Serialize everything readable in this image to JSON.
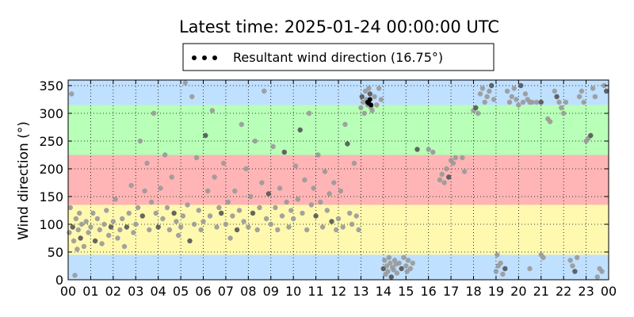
{
  "chart_data": {
    "type": "scatter",
    "title": "Latest time: 2025-01-24 00:00:00 UTC",
    "xlabel": "",
    "ylabel": "Wind direction (°)",
    "x_range_hours": [
      0,
      24
    ],
    "x_tick_labels": [
      "00",
      "01",
      "02",
      "03",
      "04",
      "05",
      "06",
      "07",
      "08",
      "09",
      "10",
      "11",
      "12",
      "13",
      "14",
      "15",
      "16",
      "17",
      "18",
      "19",
      "20",
      "21",
      "22",
      "23",
      "00"
    ],
    "ylim": [
      0,
      360
    ],
    "y_ticks": [
      0,
      50,
      100,
      150,
      200,
      250,
      300,
      350
    ],
    "grid": true,
    "grid_style": "dotted",
    "legend_placement": "top-center",
    "legend": [
      {
        "label": "Resultant wind direction (16.75°)",
        "marker": "black-dots"
      }
    ],
    "background_bands": [
      {
        "from": 0,
        "to": 45,
        "color": "#bfe0ff"
      },
      {
        "from": 45,
        "to": 135,
        "color": "#fff9b0"
      },
      {
        "from": 135,
        "to": 225,
        "color": "#ffb5b5"
      },
      {
        "from": 225,
        "to": 315,
        "color": "#b8ffb8"
      },
      {
        "from": 315,
        "to": 360,
        "color": "#bfe0ff"
      }
    ],
    "point_color": "#999999",
    "point_color_dark": "#555555",
    "series": [
      {
        "name": "Resultant wind direction (16.75°)",
        "points": [
          [
            0.05,
            85
          ],
          [
            0.1,
            130
          ],
          [
            0.15,
            335
          ],
          [
            0.2,
            95
          ],
          [
            0.25,
            70
          ],
          [
            0.3,
            8
          ],
          [
            0.35,
            110
          ],
          [
            0.4,
            55
          ],
          [
            0.45,
            90
          ],
          [
            0.5,
            120
          ],
          [
            0.55,
            75
          ],
          [
            0.6,
            100
          ],
          [
            0.7,
            60
          ],
          [
            0.8,
            105
          ],
          [
            0.9,
            85
          ],
          [
            1.0,
            95
          ],
          [
            1.1,
            120
          ],
          [
            1.2,
            70
          ],
          [
            1.3,
            110
          ],
          [
            1.4,
            90
          ],
          [
            1.5,
            65
          ],
          [
            1.6,
            100
          ],
          [
            1.7,
            125
          ],
          [
            1.8,
            80
          ],
          [
            1.9,
            95
          ],
          [
            2.0,
            105
          ],
          [
            2.1,
            145
          ],
          [
            2.2,
            75
          ],
          [
            2.3,
            90
          ],
          [
            2.4,
            110
          ],
          [
            2.5,
            60
          ],
          [
            2.6,
            95
          ],
          [
            2.7,
            120
          ],
          [
            2.8,
            170
          ],
          [
            2.9,
            85
          ],
          [
            3.0,
            100
          ],
          [
            3.1,
            130
          ],
          [
            3.2,
            250
          ],
          [
            3.3,
            115
          ],
          [
            3.4,
            160
          ],
          [
            3.5,
            210
          ],
          [
            3.6,
            90
          ],
          [
            3.7,
            140
          ],
          [
            3.8,
            300
          ],
          [
            3.9,
            120
          ],
          [
            4.0,
            95
          ],
          [
            4.1,
            165
          ],
          [
            4.2,
            110
          ],
          [
            4.3,
            225
          ],
          [
            4.4,
            130
          ],
          [
            4.5,
            90
          ],
          [
            4.6,
            185
          ],
          [
            4.7,
            120
          ],
          [
            4.8,
            105
          ],
          [
            4.9,
            80
          ],
          [
            5.0,
            95
          ],
          [
            5.1,
            115
          ],
          [
            5.2,
            355
          ],
          [
            5.3,
            135
          ],
          [
            5.4,
            70
          ],
          [
            5.5,
            330
          ],
          [
            5.6,
            100
          ],
          [
            5.7,
            220
          ],
          [
            5.8,
            125
          ],
          [
            5.9,
            90
          ],
          [
            6.0,
            105
          ],
          [
            6.1,
            260
          ],
          [
            6.2,
            160
          ],
          [
            6.3,
            115
          ],
          [
            6.4,
            305
          ],
          [
            6.5,
            185
          ],
          [
            6.6,
            95
          ],
          [
            6.7,
            130
          ],
          [
            6.8,
            120
          ],
          [
            6.9,
            210
          ],
          [
            7.0,
            100
          ],
          [
            7.1,
            140
          ],
          [
            7.2,
            75
          ],
          [
            7.3,
            115
          ],
          [
            7.4,
            160
          ],
          [
            7.5,
            90
          ],
          [
            7.6,
            125
          ],
          [
            7.7,
            280
          ],
          [
            7.8,
            105
          ],
          [
            7.9,
            200
          ],
          [
            8.0,
            95
          ],
          [
            8.1,
            150
          ],
          [
            8.2,
            120
          ],
          [
            8.3,
            250
          ],
          [
            8.4,
            90
          ],
          [
            8.5,
            130
          ],
          [
            8.6,
            175
          ],
          [
            8.7,
            340
          ],
          [
            8.8,
            110
          ],
          [
            8.9,
            155
          ],
          [
            9.0,
            100
          ],
          [
            9.1,
            240
          ],
          [
            9.2,
            130
          ],
          [
            9.3,
            90
          ],
          [
            9.4,
            165
          ],
          [
            9.5,
            115
          ],
          [
            9.6,
            230
          ],
          [
            9.7,
            140
          ],
          [
            9.8,
            95
          ],
          [
            9.9,
            125
          ],
          [
            10.0,
            110
          ],
          [
            10.1,
            205
          ],
          [
            10.2,
            145
          ],
          [
            10.3,
            270
          ],
          [
            10.4,
            120
          ],
          [
            10.5,
            180
          ],
          [
            10.6,
            90
          ],
          [
            10.7,
            300
          ],
          [
            10.8,
            135
          ],
          [
            10.9,
            165
          ],
          [
            11.0,
            115
          ],
          [
            11.1,
            225
          ],
          [
            11.2,
            140
          ],
          [
            11.3,
            95
          ],
          [
            11.4,
            195
          ],
          [
            11.5,
            125
          ],
          [
            11.6,
            155
          ],
          [
            11.7,
            105
          ],
          [
            11.8,
            175
          ],
          [
            11.9,
            90
          ],
          [
            12.0,
            110
          ],
          [
            12.1,
            160
          ],
          [
            12.2,
            95
          ],
          [
            12.3,
            280
          ],
          [
            12.4,
            245
          ],
          [
            12.5,
            120
          ],
          [
            12.6,
            100
          ],
          [
            12.7,
            210
          ],
          [
            12.8,
            115
          ],
          [
            12.9,
            90
          ],
          [
            13.0,
            310
          ],
          [
            13.05,
            330
          ],
          [
            13.1,
            320
          ],
          [
            13.15,
            300
          ],
          [
            13.2,
            340
          ],
          [
            13.25,
            325
          ],
          [
            13.3,
            315
          ],
          [
            13.35,
            345
          ],
          [
            13.4,
            335
          ],
          [
            13.45,
            310
          ],
          [
            13.5,
            305
          ],
          [
            13.6,
            330
          ],
          [
            13.7,
            315
          ],
          [
            13.8,
            345
          ],
          [
            13.9,
            325
          ],
          [
            14.0,
            20
          ],
          [
            14.05,
            35
          ],
          [
            14.1,
            10
          ],
          [
            14.15,
            25
          ],
          [
            14.2,
            15
          ],
          [
            14.25,
            40
          ],
          [
            14.3,
            30
          ],
          [
            14.35,
            5
          ],
          [
            14.4,
            22
          ],
          [
            14.45,
            18
          ],
          [
            14.5,
            35
          ],
          [
            14.55,
            28
          ],
          [
            14.6,
            12
          ],
          [
            14.7,
            30
          ],
          [
            14.8,
            20
          ],
          [
            14.9,
            40
          ],
          [
            15.0,
            25
          ],
          [
            15.05,
            15
          ],
          [
            15.1,
            35
          ],
          [
            15.2,
            20
          ],
          [
            15.3,
            30
          ],
          [
            15.5,
            235
          ],
          [
            16.0,
            235
          ],
          [
            16.2,
            230
          ],
          [
            16.5,
            180
          ],
          [
            16.6,
            190
          ],
          [
            16.7,
            175
          ],
          [
            16.8,
            200
          ],
          [
            16.9,
            185
          ],
          [
            17.0,
            215
          ],
          [
            17.1,
            210
          ],
          [
            17.2,
            220
          ],
          [
            17.5,
            220
          ],
          [
            17.6,
            195
          ],
          [
            18.0,
            305
          ],
          [
            18.1,
            310
          ],
          [
            18.2,
            300
          ],
          [
            18.3,
            335
          ],
          [
            18.4,
            345
          ],
          [
            18.5,
            320
          ],
          [
            18.6,
            330
          ],
          [
            18.7,
            340
          ],
          [
            18.8,
            350
          ],
          [
            18.9,
            325
          ],
          [
            19.0,
            15
          ],
          [
            19.05,
            45
          ],
          [
            19.1,
            25
          ],
          [
            19.2,
            30
          ],
          [
            19.3,
            10
          ],
          [
            19.4,
            20
          ],
          [
            19.5,
            340
          ],
          [
            19.6,
            320
          ],
          [
            19.7,
            330
          ],
          [
            19.8,
            345
          ],
          [
            19.9,
            325
          ],
          [
            20.0,
            315
          ],
          [
            20.1,
            350
          ],
          [
            20.2,
            320
          ],
          [
            20.3,
            335
          ],
          [
            20.4,
            325
          ],
          [
            20.5,
            320
          ],
          [
            20.6,
            320
          ],
          [
            20.8,
            320
          ],
          [
            21.0,
            320
          ],
          [
            20.5,
            20
          ],
          [
            21.0,
            45
          ],
          [
            21.1,
            40
          ],
          [
            21.3,
            290
          ],
          [
            21.4,
            285
          ],
          [
            21.6,
            340
          ],
          [
            21.7,
            330
          ],
          [
            21.8,
            320
          ],
          [
            21.9,
            310
          ],
          [
            22.0,
            300
          ],
          [
            22.1,
            320
          ],
          [
            22.3,
            35
          ],
          [
            22.4,
            25
          ],
          [
            22.5,
            15
          ],
          [
            22.6,
            40
          ],
          [
            22.7,
            330
          ],
          [
            22.8,
            340
          ],
          [
            22.9,
            320
          ],
          [
            23.0,
            250
          ],
          [
            23.1,
            255
          ],
          [
            23.2,
            260
          ],
          [
            23.3,
            345
          ],
          [
            23.4,
            330
          ],
          [
            23.5,
            5
          ],
          [
            23.6,
            20
          ],
          [
            23.7,
            15
          ],
          [
            23.8,
            350
          ],
          [
            23.9,
            340
          ]
        ]
      }
    ],
    "resultant_points": [
      [
        13.3,
        320
      ],
      [
        13.35,
        318
      ],
      [
        13.4,
        325
      ],
      [
        13.45,
        315
      ]
    ]
  }
}
